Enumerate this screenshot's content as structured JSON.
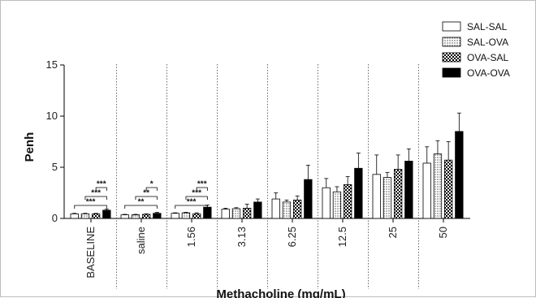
{
  "chart_data": {
    "type": "bar",
    "xlabel": "Methacholine (mg/mL)",
    "ylabel": "Penh",
    "ylim": [
      0,
      15
    ],
    "yticks": [
      0,
      5,
      10,
      15
    ],
    "categories": [
      "BASELINE",
      "saline",
      "1.56",
      "3.13",
      "6.25",
      "12.5",
      "25",
      "50"
    ],
    "legend_position": "top-right",
    "group_separators": "dotted",
    "series": [
      {
        "name": "SAL-SAL",
        "fill": "open",
        "color": "#000000",
        "values": [
          0.45,
          0.35,
          0.5,
          0.9,
          1.9,
          3.0,
          4.3,
          5.4
        ],
        "errors": [
          0.05,
          0.05,
          0.05,
          0.1,
          0.6,
          0.9,
          1.9,
          1.6
        ]
      },
      {
        "name": "SAL-OVA",
        "fill": "dotted",
        "color": "#000000",
        "values": [
          0.45,
          0.35,
          0.55,
          0.95,
          1.6,
          2.6,
          4.0,
          6.3
        ],
        "errors": [
          0.05,
          0.05,
          0.05,
          0.1,
          0.2,
          0.5,
          0.5,
          1.3
        ]
      },
      {
        "name": "OVA-SAL",
        "fill": "checkered",
        "color": "#000000",
        "values": [
          0.45,
          0.4,
          0.45,
          1.0,
          1.8,
          3.3,
          4.8,
          5.7
        ],
        "errors": [
          0.05,
          0.05,
          0.1,
          0.4,
          0.4,
          0.8,
          1.4,
          1.8
        ]
      },
      {
        "name": "OVA-OVA",
        "fill": "solid",
        "color": "#000000",
        "values": [
          0.8,
          0.5,
          1.1,
          1.6,
          3.8,
          4.9,
          5.6,
          8.5
        ],
        "errors": [
          0.1,
          0.1,
          0.2,
          0.3,
          1.4,
          1.5,
          1.2,
          1.8
        ]
      }
    ],
    "significance": [
      {
        "category": 0,
        "from_series": 0,
        "to_series": 3,
        "label": "***"
      },
      {
        "category": 0,
        "from_series": 1,
        "to_series": 3,
        "label": "***"
      },
      {
        "category": 0,
        "from_series": 2,
        "to_series": 3,
        "label": "***"
      },
      {
        "category": 1,
        "from_series": 0,
        "to_series": 3,
        "label": "**"
      },
      {
        "category": 1,
        "from_series": 1,
        "to_series": 3,
        "label": "**"
      },
      {
        "category": 1,
        "from_series": 2,
        "to_series": 3,
        "label": "*"
      },
      {
        "category": 2,
        "from_series": 0,
        "to_series": 3,
        "label": "***"
      },
      {
        "category": 2,
        "from_series": 1,
        "to_series": 3,
        "label": "***"
      },
      {
        "category": 2,
        "from_series": 2,
        "to_series": 3,
        "label": "***"
      }
    ]
  }
}
